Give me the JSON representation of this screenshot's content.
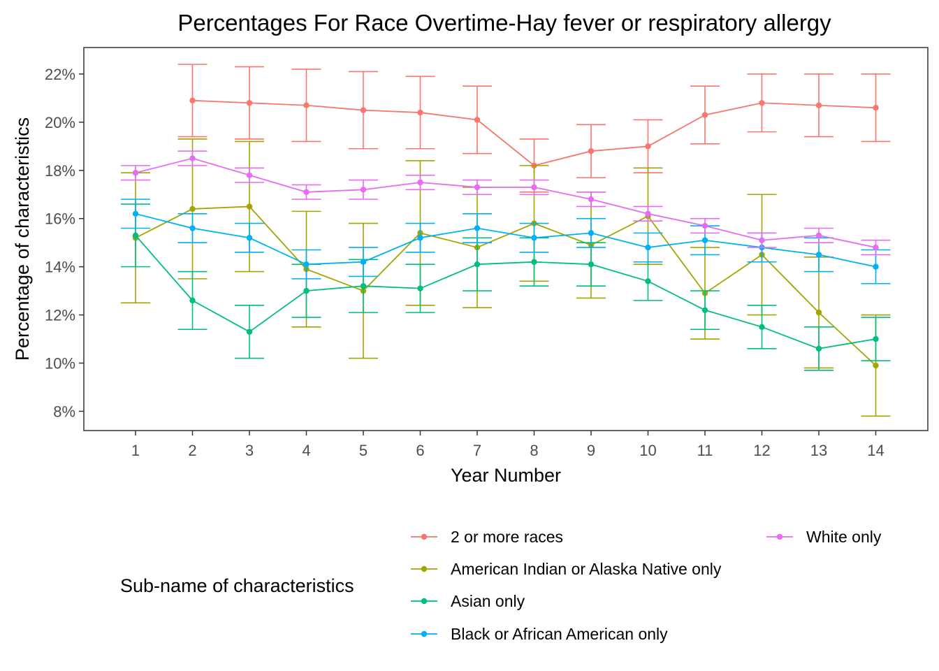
{
  "chart_data": {
    "type": "line",
    "title": "Percentages For Race Overtime-Hay fever or respiratory allergy",
    "xlabel": "Year Number",
    "ylabel": "Percentage of characteristics",
    "x": [
      1,
      2,
      3,
      4,
      5,
      6,
      7,
      8,
      9,
      10,
      11,
      12,
      13,
      14
    ],
    "xticks": [
      "1",
      "2",
      "3",
      "4",
      "5",
      "6",
      "7",
      "8",
      "9",
      "10",
      "11",
      "12",
      "13",
      "14"
    ],
    "yticks": [
      "8%",
      "10%",
      "12%",
      "14%",
      "16%",
      "18%",
      "20%",
      "22%"
    ],
    "ylim": [
      7.2,
      23.1
    ],
    "grid": false,
    "legend_title": "Sub-name of characteristics",
    "legend_position": "bottom",
    "series": [
      {
        "name": "2 or more races",
        "color": "#F8766D",
        "values": [
          null,
          20.9,
          20.8,
          20.7,
          20.5,
          20.4,
          20.1,
          18.2,
          18.8,
          19.0,
          20.3,
          20.8,
          20.7,
          20.6
        ],
        "lower": [
          null,
          19.4,
          19.3,
          19.2,
          18.9,
          18.9,
          18.7,
          17.1,
          17.7,
          17.9,
          19.1,
          19.6,
          19.4,
          19.2
        ],
        "upper": [
          null,
          22.4,
          22.3,
          22.2,
          22.1,
          21.9,
          21.5,
          19.3,
          19.9,
          20.1,
          21.5,
          22.0,
          22.0,
          22.0
        ]
      },
      {
        "name": "American Indian or Alaska Native only",
        "color": "#A3A500",
        "values": [
          15.2,
          16.4,
          16.5,
          13.9,
          13.0,
          15.4,
          14.8,
          15.8,
          14.9,
          16.1,
          12.9,
          14.5,
          12.1,
          9.9
        ],
        "lower": [
          12.5,
          13.5,
          13.8,
          11.5,
          10.2,
          12.4,
          12.3,
          13.4,
          12.7,
          14.1,
          11.0,
          12.0,
          9.8,
          7.8
        ],
        "upper": [
          17.9,
          19.3,
          19.2,
          16.3,
          15.8,
          18.4,
          17.3,
          18.2,
          17.1,
          18.1,
          14.8,
          17.0,
          14.4,
          12.0
        ]
      },
      {
        "name": "Asian only",
        "color": "#00BF7D",
        "values": [
          15.3,
          12.6,
          11.3,
          13.0,
          13.2,
          13.1,
          14.1,
          14.2,
          14.1,
          13.4,
          12.2,
          11.5,
          10.6,
          11.0
        ],
        "lower": [
          14.0,
          11.4,
          10.2,
          11.9,
          12.1,
          12.1,
          13.0,
          13.2,
          13.2,
          12.6,
          11.4,
          10.6,
          9.7,
          10.1
        ],
        "upper": [
          16.6,
          13.8,
          12.4,
          14.1,
          14.3,
          14.1,
          15.2,
          15.2,
          15.0,
          14.2,
          13.0,
          12.4,
          11.5,
          11.9
        ]
      },
      {
        "name": "Black or African American only",
        "color": "#00B0F6",
        "values": [
          16.2,
          15.6,
          15.2,
          14.1,
          14.2,
          15.2,
          15.6,
          15.2,
          15.4,
          14.8,
          15.1,
          14.8,
          14.5,
          14.0
        ],
        "lower": [
          15.6,
          15.0,
          14.6,
          13.5,
          13.6,
          14.6,
          15.0,
          14.6,
          14.8,
          14.2,
          14.5,
          14.2,
          13.8,
          13.3
        ],
        "upper": [
          16.8,
          16.2,
          15.8,
          14.7,
          14.8,
          15.8,
          16.2,
          15.8,
          16.0,
          15.4,
          15.7,
          15.4,
          15.2,
          14.7
        ]
      },
      {
        "name": "White only",
        "color": "#E76BF3",
        "values": [
          17.9,
          18.5,
          17.8,
          17.1,
          17.2,
          17.5,
          17.3,
          17.3,
          16.8,
          16.2,
          15.7,
          15.1,
          15.3,
          14.8
        ],
        "lower": [
          17.6,
          18.2,
          17.5,
          16.8,
          16.8,
          17.2,
          17.0,
          17.0,
          16.5,
          15.9,
          15.4,
          14.8,
          15.0,
          14.5
        ],
        "upper": [
          18.2,
          18.8,
          18.1,
          17.4,
          17.6,
          17.8,
          17.6,
          17.6,
          17.1,
          16.5,
          16.0,
          15.4,
          15.6,
          15.1
        ]
      }
    ]
  }
}
